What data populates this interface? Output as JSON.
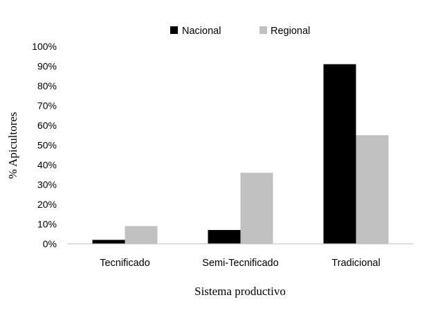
{
  "chart_data": {
    "type": "bar",
    "categories": [
      "Tecnificado",
      "Semi-Tecnificado",
      "Tradicional"
    ],
    "series": [
      {
        "name": "Nacional",
        "values": [
          2,
          7,
          91
        ],
        "color": "#000000"
      },
      {
        "name": "Regional",
        "values": [
          9,
          36,
          55
        ],
        "color": "#c0c0c0"
      }
    ],
    "xlabel": "Sistema productivo",
    "ylabel": "% Apicultores",
    "ylim": [
      0,
      100
    ],
    "yticks": [
      "0%",
      "10%",
      "20%",
      "30%",
      "40%",
      "50%",
      "60%",
      "70%",
      "80%",
      "90%",
      "100%"
    ],
    "grid": false,
    "legend_position": "top-center"
  }
}
